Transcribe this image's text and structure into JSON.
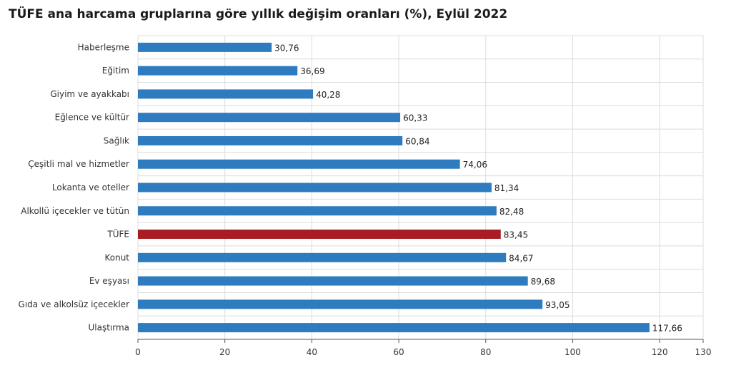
{
  "chart_data": {
    "type": "bar",
    "orientation": "horizontal",
    "title": "TÜFE ana harcama gruplarına göre yıllık değişim oranları (%), Eylül 2022",
    "xlabel": "",
    "ylabel": "",
    "xlim": [
      0,
      130
    ],
    "xticks": [
      0,
      20,
      40,
      60,
      80,
      100,
      120,
      130
    ],
    "grid": true,
    "legend": "none",
    "categories": [
      "Haberleşme",
      "Eğitim",
      "Giyim ve ayakkabı",
      "Eğlence ve kültür",
      "Sağlık",
      "Çeşitli mal ve hizmetler",
      "Lokanta ve oteller",
      "Alkollü içecekler ve tütün",
      "TÜFE",
      "Konut",
      "Ev eşyası",
      "Gıda ve alkolsüz içecekler",
      "Ulaştırma"
    ],
    "values": [
      30.76,
      36.69,
      40.28,
      60.33,
      60.84,
      74.06,
      81.34,
      82.48,
      83.45,
      84.67,
      89.68,
      93.05,
      117.66
    ],
    "value_labels": [
      "30,76",
      "36,69",
      "40,28",
      "60,33",
      "60,84",
      "74,06",
      "81,34",
      "82,48",
      "83,45",
      "84,67",
      "89,68",
      "93,05",
      "117,66"
    ],
    "highlight_category": "TÜFE",
    "colors": {
      "bar": "#2e7bbf",
      "highlight": "#a81d24",
      "grid": "#dcdcdc",
      "axis": "#555555"
    }
  }
}
